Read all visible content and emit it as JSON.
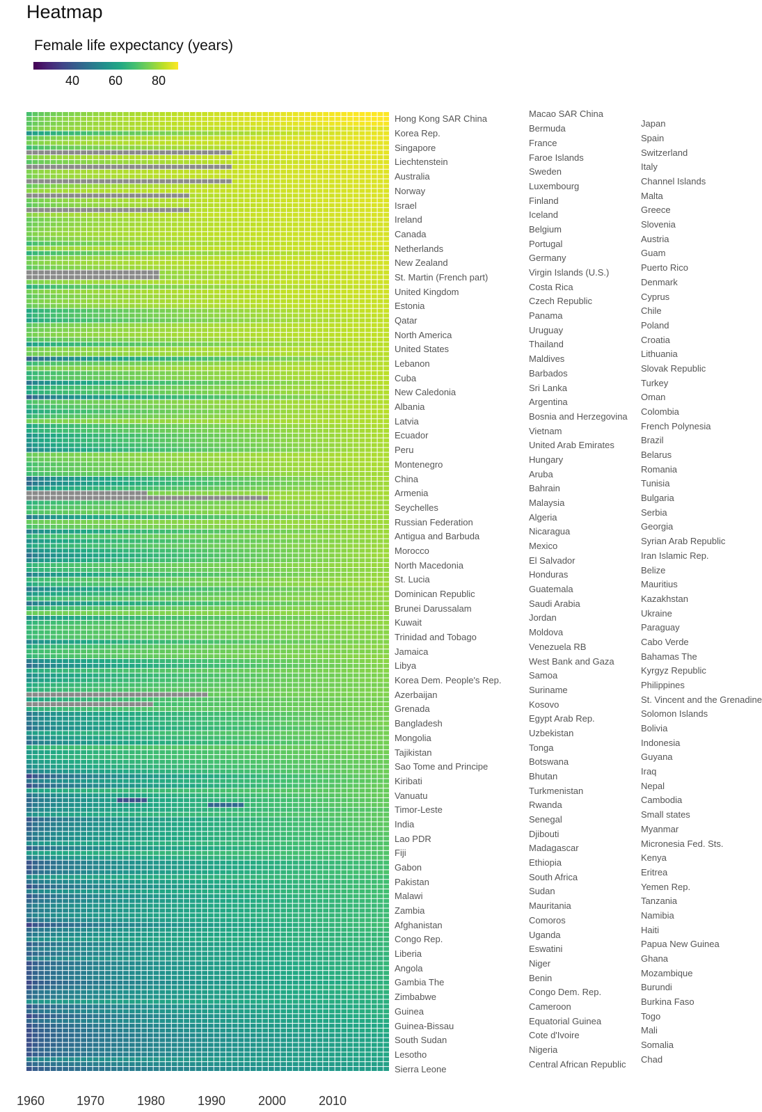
{
  "chart_data": {
    "type": "heatmap",
    "title": "Heatmap",
    "colorbar": {
      "title": "Female life expectancy (years)",
      "ticks": [
        40,
        60,
        80
      ],
      "colorscale": "viridis",
      "range": [
        20,
        88
      ],
      "colors": [
        "#440154",
        "#482475",
        "#414487",
        "#355f8d",
        "#2a788e",
        "#21918c",
        "#22a884",
        "#44bf70",
        "#7ad151",
        "#bddf26",
        "#fde725"
      ],
      "missing_color": "#8a8a8a"
    },
    "x": {
      "years": [
        1960,
        1961,
        1962,
        1963,
        1964,
        1965,
        1966,
        1967,
        1968,
        1969,
        1970,
        1971,
        1972,
        1973,
        1974,
        1975,
        1976,
        1977,
        1978,
        1979,
        1980,
        1981,
        1982,
        1983,
        1984,
        1985,
        1986,
        1987,
        1988,
        1989,
        1990,
        1991,
        1992,
        1993,
        1994,
        1995,
        1996,
        1997,
        1998,
        1999,
        2000,
        2001,
        2002,
        2003,
        2004,
        2005,
        2006,
        2007,
        2008,
        2009,
        2010,
        2011,
        2012,
        2013,
        2014,
        2015,
        2016,
        2017,
        2018,
        2019
      ],
      "tick_labels": [
        "1960",
        "1970",
        "1980",
        "1990",
        "2000",
        "2010"
      ]
    },
    "countries": [
      "Macao SAR China",
      "Hong Kong SAR China",
      "Japan",
      "Bermuda",
      "Korea Rep.",
      "Spain",
      "France",
      "Singapore",
      "Switzerland",
      "Faroe Islands",
      "Liechtenstein",
      "Italy",
      "Sweden",
      "Australia",
      "Channel Islands",
      "Luxembourg",
      "Norway",
      "Malta",
      "Finland",
      "Israel",
      "Greece",
      "Iceland",
      "Ireland",
      "Slovenia",
      "Belgium",
      "Canada",
      "Austria",
      "Portugal",
      "Netherlands",
      "Guam",
      "Germany",
      "New Zealand",
      "Puerto Rico",
      "Virgin Islands (U.S.)",
      "St. Martin (French part)",
      "Denmark",
      "Costa Rica",
      "United Kingdom",
      "Cyprus",
      "Czech Republic",
      "Estonia",
      "Chile",
      "Panama",
      "Qatar",
      "Poland",
      "Uruguay",
      "North America",
      "Croatia",
      "Thailand",
      "United States",
      "Lithuania",
      "Maldives",
      "Lebanon",
      "Slovak Republic",
      "Barbados",
      "Cuba",
      "Turkey",
      "Sri Lanka",
      "New Caledonia",
      "Oman",
      "Argentina",
      "Albania",
      "Colombia",
      "Bosnia and Herzegovina",
      "Latvia",
      "French Polynesia",
      "Vietnam",
      "Ecuador",
      "Brazil",
      "United Arab Emirates",
      "Peru",
      "Belarus",
      "Hungary",
      "Montenegro",
      "Romania",
      "Aruba",
      "China",
      "Tunisia",
      "Bahrain",
      "Armenia",
      "Bulgaria",
      "Malaysia",
      "Seychelles",
      "Serbia",
      "Algeria",
      "Russian Federation",
      "Georgia",
      "Nicaragua",
      "Antigua and Barbuda",
      "Syrian Arab Republic",
      "Mexico",
      "Morocco",
      "Iran Islamic Rep.",
      "El Salvador",
      "North Macedonia",
      "Belize",
      "Honduras",
      "St. Lucia",
      "Mauritius",
      "Guatemala",
      "Dominican Republic",
      "Kazakhstan",
      "Saudi Arabia",
      "Brunei Darussalam",
      "Ukraine",
      "Jordan",
      "Kuwait",
      "Paraguay",
      "Moldova",
      "Trinidad and Tobago",
      "Cabo Verde",
      "Venezuela RB",
      "Jamaica",
      "Bahamas The",
      "West Bank and Gaza",
      "Libya",
      "Kyrgyz Republic",
      "Samoa",
      "Korea Dem. People's Rep.",
      "Philippines",
      "Suriname",
      "Azerbaijan",
      "St. Vincent and the Grenadines",
      "Kosovo",
      "Grenada",
      "Solomon Islands",
      "Egypt Arab Rep.",
      "Bangladesh",
      "Bolivia",
      "Uzbekistan",
      "Mongolia",
      "Indonesia",
      "Tonga",
      "Tajikistan",
      "Guyana",
      "Botswana",
      "Sao Tome and Principe",
      "Iraq",
      "Bhutan",
      "Kiribati",
      "Nepal",
      "Turkmenistan",
      "Vanuatu",
      "Cambodia",
      "Rwanda",
      "Timor-Leste",
      "Small states",
      "Senegal",
      "India",
      "Myanmar",
      "Djibouti",
      "Lao PDR",
      "Micronesia Fed. Sts.",
      "Madagascar",
      "Fiji",
      "Kenya",
      "Ethiopia",
      "Gabon",
      "Eritrea",
      "South Africa",
      "Pakistan",
      "Yemen Rep.",
      "Sudan",
      "Malawi",
      "Tanzania",
      "Mauritania",
      "Zambia",
      "Namibia",
      "Comoros",
      "Afghanistan",
      "Haiti",
      "Uganda",
      "Congo Rep.",
      "Papua New Guinea",
      "Eswatini",
      "Liberia",
      "Ghana",
      "Niger",
      "Angola",
      "Mozambique",
      "Benin",
      "Gambia The",
      "Burundi",
      "Congo Dem. Rep.",
      "Zimbabwe",
      "Burkina Faso",
      "Cameroon",
      "Guinea",
      "Togo",
      "Equatorial Guinea",
      "Guinea-Bissau",
      "Mali",
      "Cote d'Ivoire",
      "South Sudan",
      "Somalia",
      "Nigeria",
      "Lesotho",
      "Chad",
      "Central African Republic",
      "Sierra Leone"
    ],
    "life_expectancy_2019": [
      88.7,
      88.1,
      87.5,
      85.2,
      86.1,
      86.2,
      85.6,
      85.5,
      85.6,
      85.0,
      84.8,
      85.4,
      84.7,
      84.9,
      84.4,
      84.6,
      84.3,
      84.4,
      84.7,
      84.5,
      84.1,
      84.2,
      84.2,
      83.9,
      83.9,
      84.0,
      84.0,
      84.4,
      83.6,
      82.7,
      83.6,
      83.5,
      83.7,
      83.0,
      83.2,
      83.1,
      82.7,
      83.2,
      82.9,
      82.3,
      82.6,
      82.5,
      81.9,
      81.5,
      82.0,
      81.4,
      81.7,
      81.4,
      80.9,
      81.4,
      80.8,
      80.2,
      80.7,
      80.9,
      81.0,
      80.7,
      80.7,
      80.4,
      80.2,
      79.9,
      80.1,
      80.4,
      80.7,
      80.1,
      80.0,
      79.8,
      79.4,
      79.6,
      79.5,
      79.2,
      79.3,
      79.6,
      79.6,
      79.4,
      79.4,
      78.6,
      79.2,
      78.3,
      78.7,
      79.0,
      78.7,
      78.0,
      78.6,
      78.3,
      77.9,
      78.2,
      78.1,
      77.9,
      78.2,
      77.2,
      77.8,
      77.7,
      78.2,
      77.2,
      77.8,
      76.7,
      77.6,
      77.6,
      78.5,
      76.8,
      77.3,
      77.4,
      76.2,
      77.0,
      76.9,
      76.1,
      76.8,
      76.4,
      75.9,
      76.2,
      75.4,
      76.4,
      75.2,
      76.3,
      76.0,
      75.3,
      75.7,
      74.8,
      75.4,
      74.2,
      75.0,
      75.1,
      74.0,
      74.7,
      74.2,
      74.3,
      73.9,
      74.6,
      73.4,
      73.9,
      73.8,
      73.6,
      73.4,
      73.6,
      72.7,
      72.6,
      72.2,
      72.9,
      72.3,
      71.5,
      72.5,
      71.9,
      72.3,
      71.3,
      71.9,
      70.0,
      71.3,
      71.0,
      70.9,
      70.7,
      70.1,
      69.9,
      69.1,
      69.8,
      69.2,
      69.1,
      67.6,
      67.5,
      68.6,
      67.1,
      67.1,
      67.6,
      67.2,
      67.3,
      66.4,
      66.0,
      66.1,
      66.2,
      66.4,
      67.0,
      66.0,
      65.3,
      65.4,
      64.9,
      65.0,
      64.3,
      63.8,
      64.8,
      64.5,
      64.2,
      64.1,
      63.2,
      64.7,
      63.6,
      62.9,
      62.7,
      62.3,
      62.9,
      62.5,
      61.7,
      60.6,
      61.8,
      60.0,
      59.6,
      60.2,
      59.4,
      60.3,
      59.1,
      58.4,
      57.7,
      56.3,
      56.4,
      56.1,
      55.1
    ],
    "life_expectancy_1960": [
      68.0,
      71.0,
      70.2,
      73.0,
      55.0,
      71.0,
      73.6,
      66.0,
      74.1,
      74.5,
      70.0,
      72.3,
      74.9,
      73.9,
      74.0,
      71.9,
      76.0,
      70.2,
      72.5,
      70.9,
      72.2,
      75.6,
      71.9,
      72.2,
      73.5,
      74.3,
      71.9,
      66.0,
      75.4,
      63.1,
      72.4,
      73.9,
      70.9,
      68.0,
      66.0,
      74.1,
      62.5,
      73.7,
      70.8,
      73.6,
      71.6,
      60.6,
      62.6,
      58.5,
      70.5,
      71.7,
      73.2,
      68.2,
      57.2,
      73.1,
      72.7,
      39.7,
      64.9,
      72.7,
      63.6,
      65.5,
      46.4,
      60.4,
      60.5,
      40.4,
      68.0,
      64.1,
      58.9,
      64.4,
      73.1,
      59.5,
      61.3,
      54.0,
      55.9,
      53.5,
      49.1,
      72.0,
      70.3,
      67.0,
      67.8,
      66.4,
      44.4,
      43.6,
      53.3,
      68.3,
      72.0,
      62.6,
      65.4,
      68.0,
      47.6,
      71.7,
      68.5,
      49.0,
      63.3,
      53.1,
      59.3,
      50.3,
      45.4,
      51.0,
      63.4,
      61.5,
      48.8,
      64.5,
      60.6,
      47.5,
      54.8,
      63.9,
      46.0,
      63.3,
      71.9,
      53.0,
      63.0,
      65.5,
      65.3,
      65.5,
      50.6,
      61.2,
      65.8,
      64.5,
      48.2,
      44.0,
      60.0,
      52.4,
      55.0,
      60.7,
      61.7,
      63.3,
      58.7,
      56.0,
      61.6,
      46.7,
      47.8,
      46.6,
      44.0,
      56.1,
      49.4,
      44.1,
      62.3,
      56.1,
      58.3,
      54.5,
      53.0,
      48.0,
      33.7,
      45.8,
      36.4,
      57.4,
      45.5,
      43.5,
      44.3,
      47.5,
      53.0,
      38.2,
      41.7,
      41.1,
      45.8,
      44.2,
      53.1,
      40.1,
      57.2,
      48.3,
      37.8,
      38.7,
      39.8,
      52.8,
      45.2,
      37.4,
      49.0,
      39.3,
      42.5,
      46.8,
      45.2,
      48.3,
      43.2,
      33.3,
      43.3,
      46.2,
      51.2,
      40.4,
      45.5,
      40.6,
      47.4,
      36.9,
      39.4,
      38.3,
      39.6,
      35.0,
      37.7,
      42.9,
      43.1,
      54.1,
      39.0,
      43.2,
      34.7,
      42.3,
      37.5,
      36.6,
      36.0,
      36.8,
      36.1,
      38.7,
      37.2,
      49.7,
      41.7,
      37.4,
      32.4
    ],
    "missing_years": {
      "Switzerland": [
        0,
        1,
        2,
        3,
        4,
        5,
        6,
        7,
        8,
        9,
        10,
        11,
        12,
        13,
        14,
        15,
        16,
        17,
        18,
        19,
        20,
        21,
        22,
        23,
        24,
        25,
        26,
        27,
        28,
        29,
        30,
        31,
        32,
        33
      ],
      "Italy": [
        0,
        1,
        2,
        3,
        4,
        5,
        6,
        7,
        8,
        9,
        10,
        11,
        12,
        13,
        14,
        15,
        16,
        17,
        18,
        19,
        20,
        21,
        22,
        23,
        24,
        25,
        26,
        27,
        28,
        29,
        30,
        31,
        32,
        33
      ],
      "Channel Islands": [
        0,
        1,
        2,
        3,
        4,
        5,
        6,
        7,
        8,
        9,
        10,
        11,
        12,
        13,
        14,
        15,
        16,
        17,
        18,
        19,
        20,
        21,
        22,
        23,
        24,
        25,
        26,
        27,
        28,
        29,
        30,
        31,
        32,
        33
      ],
      "Malta": [
        0,
        1,
        2,
        3,
        4,
        5,
        6,
        7,
        8,
        9,
        10,
        11,
        12,
        13,
        14,
        15,
        16,
        17,
        18,
        19,
        20,
        21,
        22,
        23,
        24,
        25,
        26
      ],
      "Greece": [
        0,
        1,
        2,
        3,
        4,
        5,
        6,
        7,
        8,
        9,
        10,
        11,
        12,
        13,
        14,
        15,
        16,
        17,
        18,
        19,
        20,
        21,
        22,
        23,
        24,
        25,
        26
      ],
      "Virgin Islands (U.S.)": [
        0,
        1,
        2,
        3,
        4,
        5,
        6,
        7,
        8,
        9,
        10,
        11,
        12,
        13,
        14,
        15,
        16,
        17,
        18,
        19,
        20,
        21
      ],
      "St. Martin (French part)": [
        0,
        1,
        2,
        3,
        4,
        5,
        6,
        7,
        8,
        9,
        10,
        11,
        12,
        13,
        14,
        15,
        16,
        17,
        18,
        19,
        20,
        21
      ],
      "Armenia": [
        0,
        1,
        2,
        3,
        4,
        5,
        6,
        7,
        8,
        9,
        10,
        11,
        12,
        13,
        14,
        15,
        16,
        17,
        18,
        19
      ],
      "Bulgaria": [
        0,
        1,
        2,
        3,
        4,
        5,
        6,
        7,
        8,
        9,
        10,
        11,
        12,
        13,
        14,
        15,
        16,
        17,
        18,
        19,
        20,
        21,
        22,
        23,
        24,
        25,
        26,
        27,
        28,
        29,
        30,
        31,
        32,
        33,
        34,
        35,
        36,
        37,
        38,
        39
      ],
      "Azerbaijan": [
        0,
        1,
        2,
        3,
        4,
        5,
        6,
        7,
        8,
        9,
        10,
        11,
        12,
        13,
        14,
        15,
        16,
        17,
        18,
        19,
        20,
        21,
        22,
        23,
        24,
        25,
        26,
        27,
        28,
        29
      ],
      "Kosovo": [
        0,
        1,
        2,
        3,
        4,
        5,
        6,
        7,
        8,
        9,
        10,
        11,
        12,
        13,
        14,
        15,
        16,
        17,
        18,
        19,
        20
      ]
    },
    "dips": {
      "Cambodia": [
        15,
        16,
        17,
        18,
        19
      ],
      "Rwanda": [
        30,
        31,
        32,
        33,
        34,
        35
      ]
    }
  }
}
